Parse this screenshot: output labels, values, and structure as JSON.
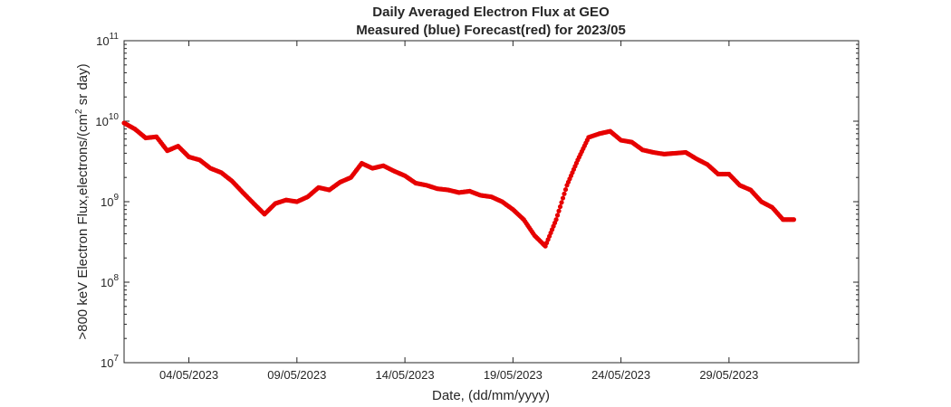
{
  "chart_data": {
    "type": "scatter",
    "title": "Daily Averaged Electron Flux at GEO",
    "subtitle": "Measured (blue) Forecast(red) for 2023/05",
    "xlabel": "Date, (dd/mm/yyyy)",
    "ylabel_base": ">800 keV Electron Flux,electrons/(cm",
    "ylabel_sup": "2",
    "ylabel_end": " sr day)",
    "y_scale": "log",
    "ylim": [
      10000000,
      100000000000
    ],
    "y_ticks": [
      {
        "value": 10000000,
        "base": "10",
        "exp": "7"
      },
      {
        "value": 100000000,
        "base": "10",
        "exp": "8"
      },
      {
        "value": 1000000000,
        "base": "10",
        "exp": "9"
      },
      {
        "value": 10000000000,
        "base": "10",
        "exp": "10"
      },
      {
        "value": 100000000000,
        "base": "10",
        "exp": "11"
      }
    ],
    "xlim": [
      "2023-05-01",
      "2023-06-04"
    ],
    "x_ticks": [
      {
        "date": "2023-05-04",
        "label": "04/05/2023"
      },
      {
        "date": "2023-05-09",
        "label": "09/05/2023"
      },
      {
        "date": "2023-05-14",
        "label": "14/05/2023"
      },
      {
        "date": "2023-05-19",
        "label": "19/05/2023"
      },
      {
        "date": "2023-05-24",
        "label": "24/05/2023"
      },
      {
        "date": "2023-05-29",
        "label": "29/05/2023"
      }
    ],
    "grid": false,
    "series": [
      {
        "color": "#e60000",
        "x": [
          "2023-05-01",
          "2023-05-01 12:00",
          "2023-05-02",
          "2023-05-02 12:00",
          "2023-05-03",
          "2023-05-03 12:00",
          "2023-05-04",
          "2023-05-04 12:00",
          "2023-05-05",
          "2023-05-05 12:00",
          "2023-05-06",
          "2023-05-06 12:00",
          "2023-05-07",
          "2023-05-07 12:00",
          "2023-05-08",
          "2023-05-08 12:00",
          "2023-05-09",
          "2023-05-09 12:00",
          "2023-05-10",
          "2023-05-10 12:00",
          "2023-05-11",
          "2023-05-11 12:00",
          "2023-05-12",
          "2023-05-12 12:00",
          "2023-05-13",
          "2023-05-13 12:00",
          "2023-05-14",
          "2023-05-14 12:00",
          "2023-05-15",
          "2023-05-15 12:00",
          "2023-05-16",
          "2023-05-16 12:00",
          "2023-05-17",
          "2023-05-17 12:00",
          "2023-05-18",
          "2023-05-18 12:00",
          "2023-05-19",
          "2023-05-19 12:00",
          "2023-05-20",
          "2023-05-20 12:00",
          "2023-05-21",
          "2023-05-21 12:00",
          "2023-05-22",
          "2023-05-22 12:00",
          "2023-05-23",
          "2023-05-23 12:00",
          "2023-05-24",
          "2023-05-24 12:00",
          "2023-05-25",
          "2023-05-25 12:00",
          "2023-05-26",
          "2023-05-26 12:00",
          "2023-05-27",
          "2023-05-27 12:00",
          "2023-05-28",
          "2023-05-28 12:00",
          "2023-05-29",
          "2023-05-29 12:00",
          "2023-05-30",
          "2023-05-30 12:00",
          "2023-05-31",
          "2023-05-31 12:00",
          "2023-06-01"
        ],
        "values": [
          9500000000,
          8000000000,
          6200000000,
          6400000000,
          4300000000,
          4900000000,
          3600000000,
          3300000000,
          2600000000,
          2300000000,
          1800000000,
          1300000000,
          950000000,
          700000000,
          950000000,
          1050000000,
          1000000000,
          1150000000,
          1500000000,
          1400000000,
          1750000000,
          2000000000,
          3000000000,
          2600000000,
          2800000000,
          2400000000,
          2100000000,
          1700000000,
          1600000000,
          1450000000,
          1400000000,
          1300000000,
          1350000000,
          1200000000,
          1150000000,
          1000000000,
          800000000,
          600000000,
          380000000,
          280000000,
          600000000,
          1600000000,
          3300000000,
          6300000000,
          7000000000,
          7500000000,
          5800000000,
          5500000000,
          4400000000,
          4100000000,
          3900000000,
          4000000000,
          4100000000,
          3400000000,
          2900000000,
          2200000000,
          2200000000,
          1600000000,
          1400000000,
          1000000000,
          850000000,
          600000000,
          600000000
        ]
      }
    ]
  }
}
